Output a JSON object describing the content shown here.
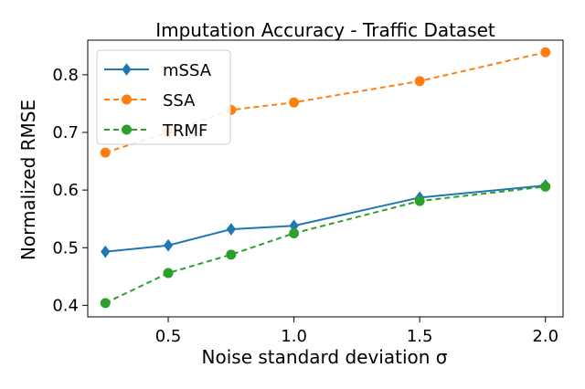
{
  "chart_data": {
    "type": "line",
    "title": "Imputation Accuracy - Traffic Dataset",
    "xlabel": "Noise standard deviation σ",
    "ylabel": "Normalized RMSE",
    "xlim": [
      0.18,
      2.07
    ],
    "ylim": [
      0.38,
      0.86
    ],
    "xticks": [
      0.5,
      1.0,
      1.5,
      2.0
    ],
    "xtick_labels": [
      "0.5",
      "1.0",
      "1.5",
      "2.0"
    ],
    "yticks": [
      0.4,
      0.5,
      0.6,
      0.7,
      0.8
    ],
    "ytick_labels": [
      "0.4",
      "0.5",
      "0.6",
      "0.7",
      "0.8"
    ],
    "grid": false,
    "legend_position": "top-left",
    "x": [
      0.25,
      0.5,
      0.75,
      1.0,
      1.5,
      2.0
    ],
    "series": [
      {
        "name": "mSSA",
        "values": [
          0.493,
          0.504,
          0.532,
          0.538,
          0.587,
          0.608
        ],
        "color": "#1f77b4",
        "linestyle": "solid",
        "marker": "diamond"
      },
      {
        "name": "SSA",
        "values": [
          0.665,
          0.7,
          0.739,
          0.752,
          0.789,
          0.839
        ],
        "color": "#ff7f0e",
        "linestyle": "dashed",
        "marker": "circle"
      },
      {
        "name": "TRMF",
        "values": [
          0.404,
          0.456,
          0.488,
          0.525,
          0.581,
          0.606
        ],
        "color": "#2ca02c",
        "linestyle": "dashed",
        "marker": "circle"
      }
    ]
  }
}
